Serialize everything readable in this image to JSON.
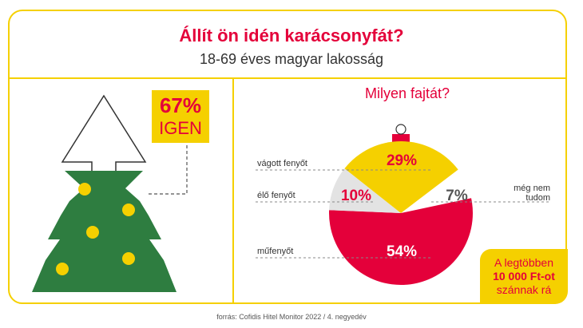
{
  "header": {
    "title": "Állít ön idén karácsonyfát?",
    "subtitle": "18-69 éves magyar lakosság"
  },
  "tree": {
    "yes_percent": "67%",
    "yes_label": "IGEN"
  },
  "question": "Milyen fajtát?",
  "chart_data": {
    "type": "pie",
    "title": "Milyen fajtát?",
    "slices": [
      {
        "label": "vágott fenyőt",
        "value": 29,
        "value_label": "29%",
        "color": "#f5d000"
      },
      {
        "label": "élő fenyőt",
        "value": 10,
        "value_label": "10%",
        "color": "#e3e3e3"
      },
      {
        "label": "műfenyőt",
        "value": 54,
        "value_label": "54%",
        "color": "#e4003a"
      },
      {
        "label": "még nem tudom",
        "value": 7,
        "value_label": "7%",
        "color": "#ffffff"
      }
    ]
  },
  "unsure_label": [
    "még nem",
    "tudom"
  ],
  "budget_note": [
    "A legtöbben",
    "10 000 Ft-ot",
    "szánnak rá"
  ],
  "source": "forrás: Cofidis Hitel Monitor 2022 / 4. negyedév",
  "colors": {
    "brand_yellow": "#f5d000",
    "brand_red": "#e4003a",
    "tree_green": "#2e7d40"
  }
}
